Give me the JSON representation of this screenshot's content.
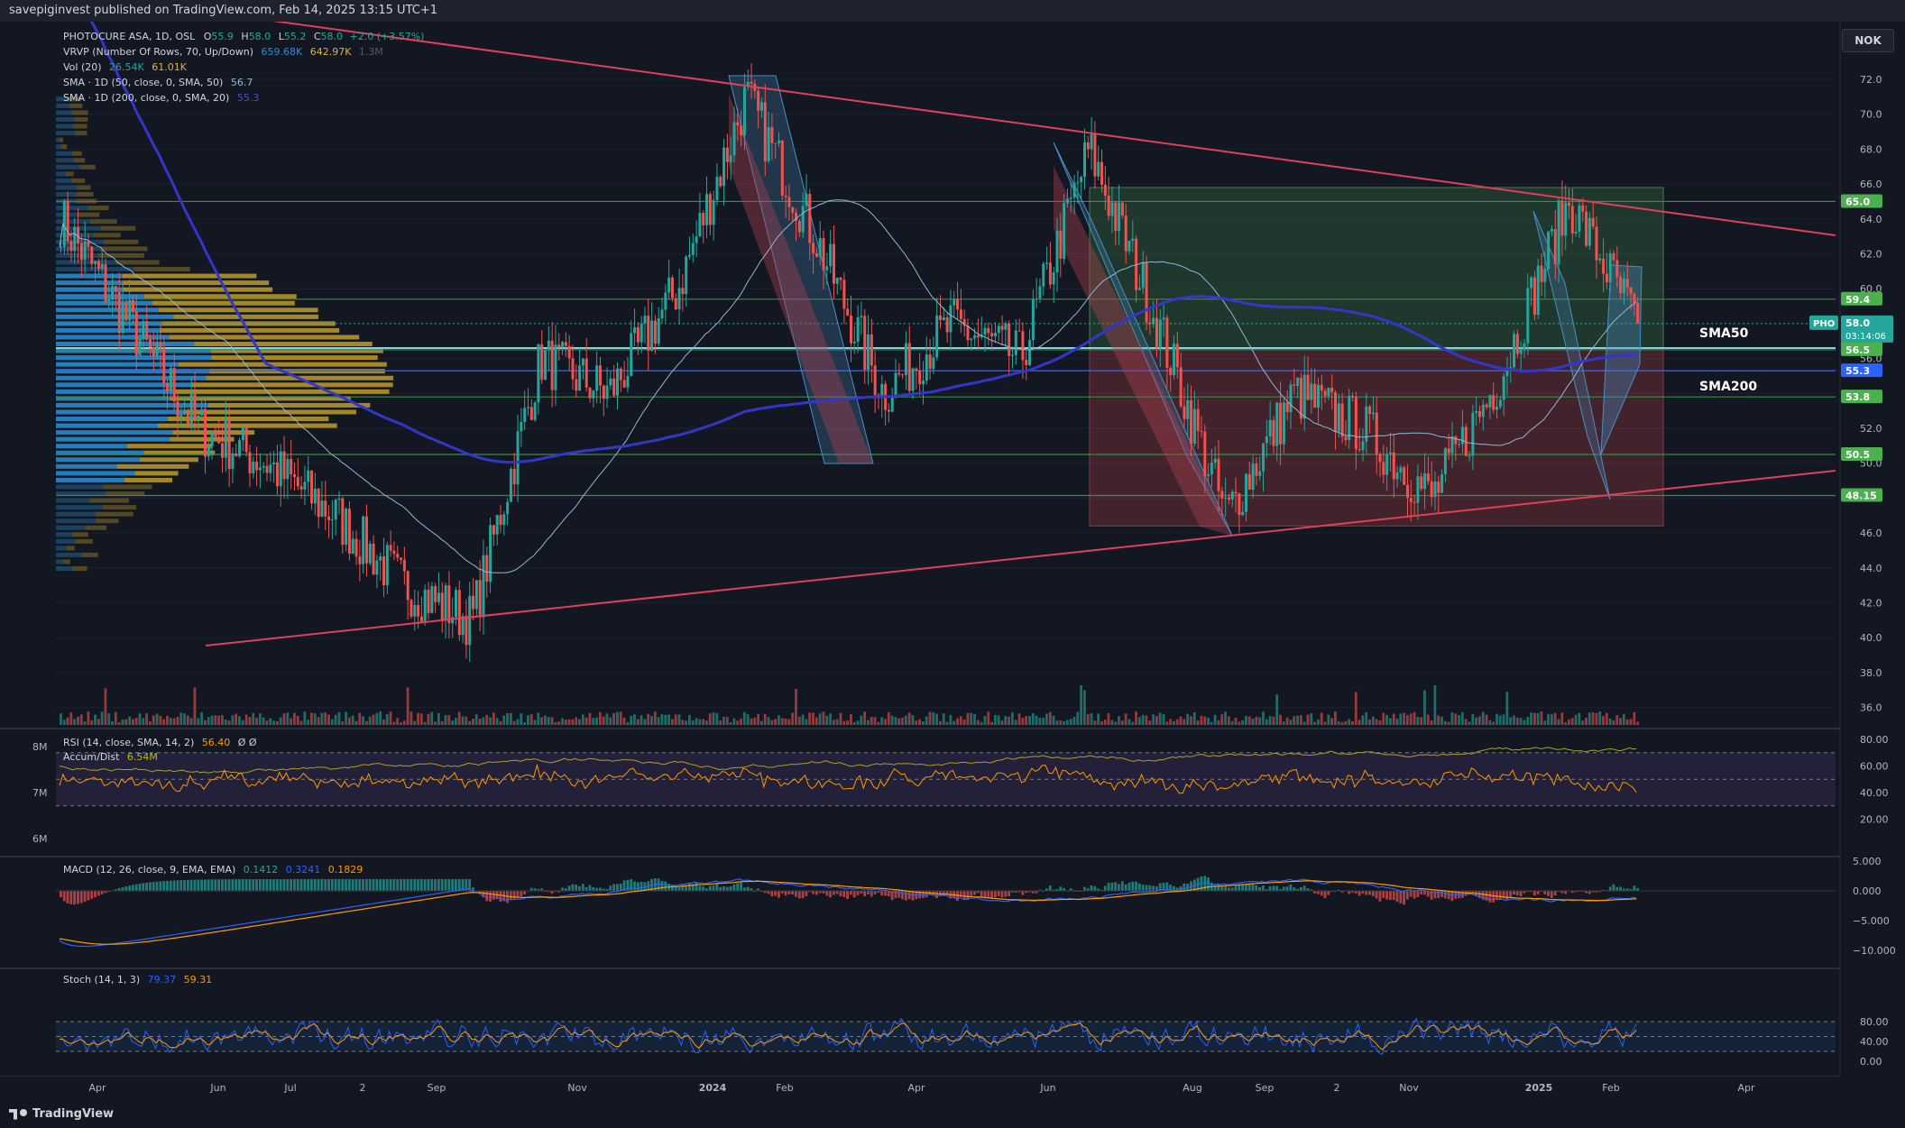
{
  "header": {
    "published_text": "savepiginvest published on TradingView.com, Feb 14, 2025 13:15 UTC+1"
  },
  "footer": {
    "brand": "TradingView"
  },
  "currency": "NOK",
  "legend": {
    "symbol_line": {
      "name": "PHOTOCURE ASA, 1D, OSL",
      "o_label": "O",
      "o_val": "55.9",
      "h_label": "H",
      "h_val": "58.0",
      "l_label": "L",
      "l_val": "55.2",
      "c_label": "C",
      "c_val": "58.0",
      "change": "+2.0 (+3.57%)"
    },
    "vrvp": {
      "label": "VRVP (Number Of Rows, 70, Up/Down)",
      "v1": "659.68K",
      "v2": "642.97K",
      "v3": "1.3M"
    },
    "vol": {
      "label": "Vol (20)",
      "v1": "26.54K",
      "v2": "61.01K"
    },
    "sma50": {
      "label": "SMA · 1D (50, close, 0, SMA, 50)",
      "value": "56.7"
    },
    "sma200": {
      "label": "SMA · 1D (200, close, 0, SMA, 20)",
      "value": "55.3"
    }
  },
  "pane_labels": {
    "rsi": {
      "label": "RSI (14, close, SMA, 14, 2)",
      "value": "56.40",
      "extra": "Ø Ø"
    },
    "accum": {
      "label": "Accum/Dist",
      "value": "6.54M"
    },
    "macd": {
      "label": "MACD (12, 26, close, 9, EMA, EMA)",
      "v1": "0.1412",
      "v2": "0.3241",
      "v3": "0.1829"
    },
    "stoch": {
      "label": "Stoch (14, 1, 3)",
      "v1": "79.37",
      "v2": "59.31"
    }
  },
  "annotations": {
    "sma50_label": "SMA50",
    "sma200_label": "SMA200"
  },
  "price_axis": {
    "ticks": [
      "72.0",
      "70.0",
      "68.0",
      "66.0",
      "64.0",
      "62.0",
      "60.0",
      "58.0",
      "56.0",
      "54.0",
      "52.0",
      "50.0",
      "48.0",
      "46.0",
      "44.0",
      "42.0",
      "40.0",
      "38.0",
      "36.0"
    ]
  },
  "rsi_axis": {
    "ticks": [
      "80.00",
      "60.00",
      "40.00",
      "20.00"
    ]
  },
  "macd_axis": {
    "ticks": [
      "5.000",
      "0.000",
      "−5.000",
      "−10.000"
    ]
  },
  "stoch_axis": {
    "ticks": [
      "80.00",
      "40.00",
      "0.00"
    ]
  },
  "accum_axis": {
    "ticks": [
      "8M",
      "7M",
      "6M"
    ]
  },
  "time_axis": {
    "labels": [
      {
        "text": "Apr",
        "bold": false
      },
      {
        "text": "Jun",
        "bold": false
      },
      {
        "text": "Jul",
        "bold": false
      },
      {
        "text": "2",
        "bold": false
      },
      {
        "text": "Sep",
        "bold": false
      },
      {
        "text": "Nov",
        "bold": false
      },
      {
        "text": "2024",
        "bold": true
      },
      {
        "text": "Feb",
        "bold": false
      },
      {
        "text": "Apr",
        "bold": false
      },
      {
        "text": "Jun",
        "bold": false
      },
      {
        "text": "Aug",
        "bold": false
      },
      {
        "text": "Sep",
        "bold": false
      },
      {
        "text": "2",
        "bold": false
      },
      {
        "text": "Nov",
        "bold": false
      },
      {
        "text": "2025",
        "bold": true
      },
      {
        "text": "Feb",
        "bold": false
      },
      {
        "text": "Apr",
        "bold": false
      }
    ]
  },
  "price_tags": [
    {
      "text": "65.0",
      "price": 65.0,
      "color": "#4caf50"
    },
    {
      "text": "59.4",
      "price": 59.4,
      "color": "#4caf50"
    },
    {
      "text": "56.6",
      "price": 56.6,
      "color": "#2a9bb0"
    },
    {
      "text": "56.5",
      "price": 56.5,
      "color": "#4caf50"
    },
    {
      "text": "55.3",
      "price": 55.3,
      "color": "#2962ff"
    },
    {
      "text": "53.8",
      "price": 53.8,
      "color": "#4caf50"
    },
    {
      "text": "50.5",
      "price": 50.5,
      "color": "#4caf50"
    },
    {
      "text": "48.15",
      "price": 48.15,
      "color": "#4caf50"
    }
  ],
  "last_price_tag": {
    "symbol": "PHO",
    "price_text": "58.0",
    "countdown": "03:14:06",
    "price": 58.0,
    "color": "#26a69a"
  },
  "chart_data": {
    "type": "candlestick",
    "symbol": "PHOTOCURE ASA",
    "interval": "1D",
    "exchange": "OSL",
    "ylim": [
      35,
      73.5
    ],
    "horizontal_levels": [
      65.0,
      59.4,
      56.5,
      53.8,
      50.5,
      48.15
    ],
    "close_path": [
      {
        "x": "Mar 2023",
        "close": 64
      },
      {
        "x": "Apr 2023",
        "close": 58
      },
      {
        "x": "May 2023",
        "close": 52
      },
      {
        "x": "Jun 2023",
        "close": 50
      },
      {
        "x": "Jul 2023",
        "close": 47
      },
      {
        "x": "Aug 2023",
        "close": 43
      },
      {
        "x": "Sep 2023",
        "close": 41
      },
      {
        "x": "Oct 2023",
        "close": 56
      },
      {
        "x": "Nov 2023",
        "close": 54
      },
      {
        "x": "Dec 2023",
        "close": 60
      },
      {
        "x": "Jan 2024",
        "close": 71
      },
      {
        "x": "Feb 2024",
        "close": 63
      },
      {
        "x": "Mar 2024",
        "close": 54
      },
      {
        "x": "Apr 2024",
        "close": 58
      },
      {
        "x": "May 2024",
        "close": 56
      },
      {
        "x": "Jun 2024",
        "close": 68
      },
      {
        "x": "Jul 2024",
        "close": 58
      },
      {
        "x": "Aug 2024",
        "close": 47
      },
      {
        "x": "Sep 2024",
        "close": 54
      },
      {
        "x": "Oct 2024",
        "close": 52
      },
      {
        "x": "Nov 2024",
        "close": 48
      },
      {
        "x": "Dec 2024",
        "close": 55
      },
      {
        "x": "Jan 2025",
        "close": 65
      },
      {
        "x": "Feb 2025",
        "close": 58
      }
    ],
    "ohlc_last": {
      "open": 55.9,
      "high": 58.0,
      "low": 55.2,
      "close": 58.0,
      "change": "+2.0 (+3.57%)"
    }
  },
  "colors": {
    "up": "#26a69a",
    "down": "#ef5350",
    "sma50": "#8fb7d8",
    "sma200": "#3436c8",
    "trendline": "#e0405a",
    "level": "#3d8a4a",
    "channel_blue": "#4a8ec7",
    "channel_red": "#b04050",
    "vrvp_up": "#2a8fd6",
    "vrvp_down": "#c8a42a"
  }
}
